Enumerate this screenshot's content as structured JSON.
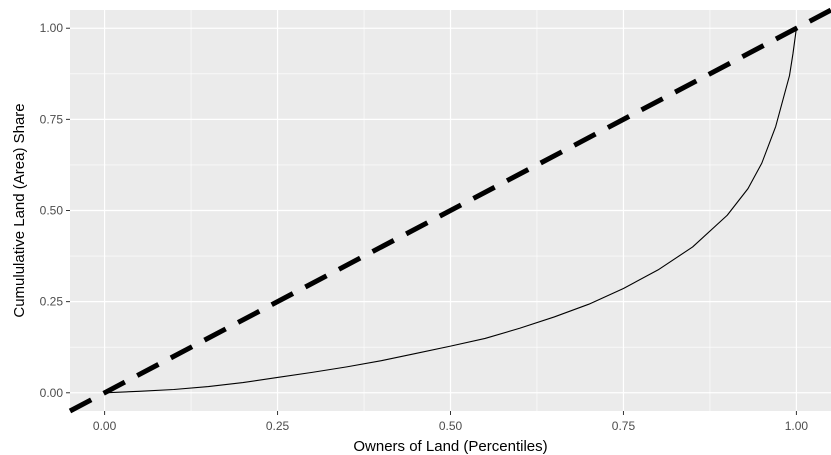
{
  "chart_data": {
    "type": "line",
    "xlabel": "Owners of Land (Percentiles)",
    "ylabel": "Cumululative Land (Area) Share",
    "xlim": [
      -0.05,
      1.05
    ],
    "ylim": [
      -0.05,
      1.05
    ],
    "x_ticks": [
      0,
      0.25,
      0.5,
      0.75,
      1
    ],
    "x_tick_labels": [
      "0.00",
      "0.25",
      "0.50",
      "0.75",
      "1.00"
    ],
    "y_ticks": [
      0,
      0.25,
      0.5,
      0.75,
      1
    ],
    "y_tick_labels": [
      "0.00",
      "0.25",
      "0.50",
      "0.75",
      "1.00"
    ],
    "grid": true,
    "background": "#ebebeb",
    "series": [
      {
        "style": "dashed",
        "color": "#000000",
        "x": [
          -0.05,
          1.05
        ],
        "y": [
          -0.05,
          1.05
        ]
      },
      {
        "style": "solid",
        "color": "#000000",
        "x": [
          0,
          0.05,
          0.1,
          0.15,
          0.2,
          0.25,
          0.3,
          0.35,
          0.4,
          0.45,
          0.5,
          0.55,
          0.6,
          0.65,
          0.7,
          0.75,
          0.8,
          0.85,
          0.9,
          0.93,
          0.95,
          0.97,
          0.98,
          0.99,
          0.995,
          1.0
        ],
        "y": [
          0,
          0.004,
          0.009,
          0.017,
          0.028,
          0.042,
          0.056,
          0.071,
          0.088,
          0.108,
          0.128,
          0.149,
          0.177,
          0.208,
          0.243,
          0.286,
          0.337,
          0.4,
          0.487,
          0.56,
          0.63,
          0.73,
          0.8,
          0.87,
          0.93,
          1.0
        ]
      }
    ]
  }
}
